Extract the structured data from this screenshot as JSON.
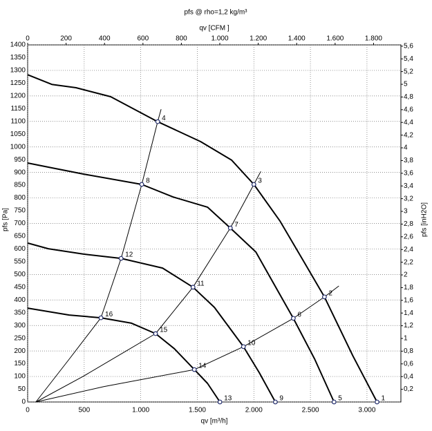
{
  "chart_data": {
    "type": "line",
    "title": "pfs @ rho=1,2 kg/m³",
    "xlabel": "qv [m³/h]",
    "x2label": "qv [CFM ]",
    "ylabel": "pfs [Pa]",
    "y2label": "pfs [inH2O]",
    "xlim": [
      0,
      3300
    ],
    "x2lim": [
      0,
      1942.3
    ],
    "ylim": [
      0,
      1400
    ],
    "y2lim": [
      0,
      5.62
    ],
    "xticks": [
      0,
      500,
      {
        "value": 1000,
        "label": "1.000"
      },
      {
        "value": 1500,
        "label": "1.500"
      },
      {
        "value": 2000,
        "label": "2.000"
      },
      {
        "value": 2500,
        "label": "2.500"
      },
      {
        "value": 3000,
        "label": "3.000"
      }
    ],
    "x2ticks": [
      0,
      200,
      400,
      600,
      800,
      {
        "value": 1000,
        "label": "1.000"
      },
      {
        "value": 1200,
        "label": "1.200"
      },
      {
        "value": 1400,
        "label": "1.400"
      },
      {
        "value": 1600,
        "label": "1.600"
      },
      {
        "value": 1800,
        "label": "1.800"
      }
    ],
    "yticks": [
      0,
      50,
      100,
      150,
      200,
      250,
      300,
      350,
      400,
      450,
      500,
      550,
      600,
      650,
      700,
      750,
      800,
      850,
      900,
      950,
      1000,
      1050,
      1100,
      1150,
      1200,
      1250,
      1300,
      1350,
      1400
    ],
    "y2ticks": [
      {
        "value": 0.2,
        "label": "0,2"
      },
      {
        "value": 0.4,
        "label": "0,4"
      },
      {
        "value": 0.6,
        "label": "0,6"
      },
      {
        "value": 0.8,
        "label": "0,8"
      },
      1,
      {
        "value": 1.2,
        "label": "1,2"
      },
      {
        "value": 1.4,
        "label": "1,4"
      },
      {
        "value": 1.6,
        "label": "1,6"
      },
      {
        "value": 1.8,
        "label": "1,8"
      },
      2,
      {
        "value": 2.2,
        "label": "2,2"
      },
      {
        "value": 2.4,
        "label": "2,4"
      },
      {
        "value": 2.6,
        "label": "2,6"
      },
      {
        "value": 2.8,
        "label": "2,8"
      },
      3,
      {
        "value": 3.2,
        "label": "3,2"
      },
      {
        "value": 3.4,
        "label": "3,4"
      },
      {
        "value": 3.6,
        "label": "3,6"
      },
      {
        "value": 3.8,
        "label": "3,8"
      },
      4,
      {
        "value": 4.2,
        "label": "4,2"
      },
      {
        "value": 4.4,
        "label": "4,4"
      },
      {
        "value": 4.6,
        "label": "4,6"
      },
      {
        "value": 4.8,
        "label": "4,8"
      },
      5,
      {
        "value": 5.2,
        "label": "5,2"
      },
      {
        "value": 5.4,
        "label": "5,4"
      },
      {
        "value": 5.6,
        "label": "5,6"
      }
    ],
    "grid": true,
    "series": [
      {
        "color": "#000000",
        "width": 2,
        "x": [
          0,
          214,
          428,
          734,
          1150,
          1529,
          1804,
          2000,
          2232,
          2446,
          2624,
          2875,
          3089
        ],
        "values": [
          1283,
          1245,
          1232,
          1197,
          1099,
          1021,
          948,
          853,
          709,
          547,
          412,
          181,
          0
        ]
      },
      {
        "color": "#000000",
        "width": 2,
        "x": [
          0,
          214,
          489,
          1009,
          1284,
          1590,
          1792,
          2018,
          2349,
          2538,
          2709
        ],
        "values": [
          937,
          918,
          894,
          853,
          804,
          764,
          682,
          588,
          328,
          168,
          0
        ]
      },
      {
        "color": "#000000",
        "width": 2,
        "x": [
          0,
          183,
          489,
          826,
          1193,
          1462,
          1651,
          1908,
          2049,
          2190
        ],
        "values": [
          623,
          601,
          580,
          563,
          525,
          450,
          371,
          217,
          114,
          0
        ]
      },
      {
        "color": "#000000",
        "width": 2,
        "x": [
          0,
          367,
          648,
          918,
          1131,
          1297,
          1474,
          1590,
          1700
        ],
        "values": [
          368,
          341,
          330,
          309,
          268,
          209,
          127,
          73,
          0
        ]
      },
      {
        "color": "#000000",
        "width": 1,
        "x": [
          73,
          367,
          648,
          826,
          1009,
          1150,
          1180
        ],
        "values": [
          0,
          168,
          330,
          563,
          853,
          1100,
          1148
        ]
      },
      {
        "color": "#000000",
        "width": 1,
        "x": [
          73,
          489,
          1131,
          1462,
          1792,
          2000,
          2061
        ],
        "values": [
          0,
          100,
          268,
          450,
          682,
          853,
          904
        ]
      },
      {
        "color": "#000000",
        "width": 1,
        "x": [
          73,
          673,
          1474,
          1908,
          2349,
          2624,
          2752
        ],
        "values": [
          0,
          60,
          127,
          217,
          328,
          412,
          455
        ]
      }
    ],
    "points": [
      {
        "label": "1",
        "x": 3089,
        "y": 0
      },
      {
        "label": "2",
        "x": 2624,
        "y": 412
      },
      {
        "label": "3",
        "x": 2000,
        "y": 853
      },
      {
        "label": "4",
        "x": 1150,
        "y": 1099
      },
      {
        "label": "5",
        "x": 2709,
        "y": 0
      },
      {
        "label": "6",
        "x": 2349,
        "y": 328
      },
      {
        "label": "7",
        "x": 1792,
        "y": 682
      },
      {
        "label": "8",
        "x": 1009,
        "y": 853
      },
      {
        "label": "9",
        "x": 2190,
        "y": 0
      },
      {
        "label": "10",
        "x": 1908,
        "y": 217
      },
      {
        "label": "11",
        "x": 1462,
        "y": 450
      },
      {
        "label": "12",
        "x": 826,
        "y": 563
      },
      {
        "label": "13",
        "x": 1700,
        "y": 0
      },
      {
        "label": "14",
        "x": 1474,
        "y": 127
      },
      {
        "label": "15",
        "x": 1131,
        "y": 268
      },
      {
        "label": "16",
        "x": 648,
        "y": 330
      }
    ],
    "point_color": "#1f2a6b"
  }
}
